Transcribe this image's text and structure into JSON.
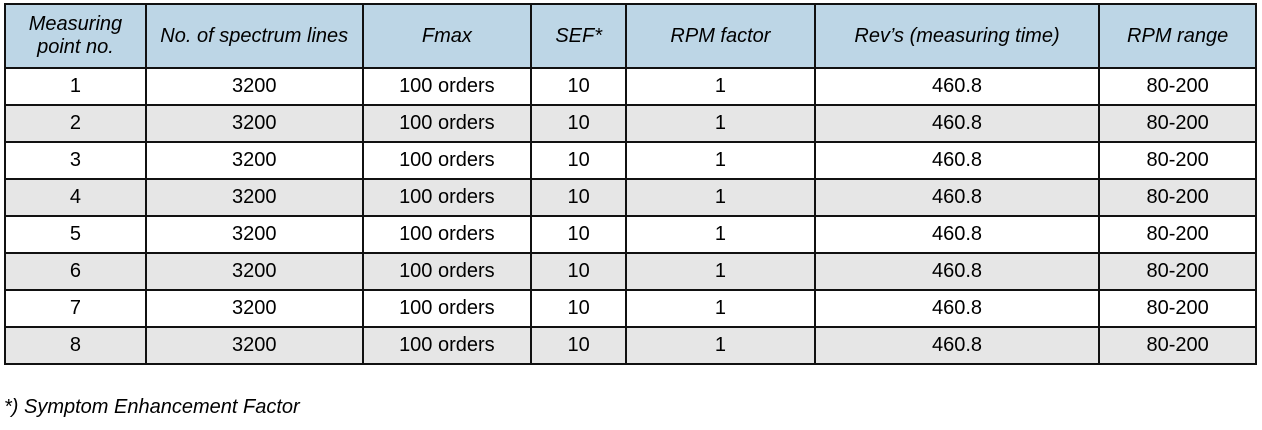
{
  "table": {
    "headers": [
      "Measuring point no.",
      "No. of spectrum lines",
      "Fmax",
      "SEF*",
      "RPM factor",
      "Rev’s (measuring time)",
      "RPM range"
    ],
    "rows": [
      [
        "1",
        "3200",
        "100 orders",
        "10",
        "1",
        "460.8",
        "80-200"
      ],
      [
        "2",
        "3200",
        "100 orders",
        "10",
        "1",
        "460.8",
        "80-200"
      ],
      [
        "3",
        "3200",
        "100 orders",
        "10",
        "1",
        "460.8",
        "80-200"
      ],
      [
        "4",
        "3200",
        "100 orders",
        "10",
        "1",
        "460.8",
        "80-200"
      ],
      [
        "5",
        "3200",
        "100 orders",
        "10",
        "1",
        "460.8",
        "80-200"
      ],
      [
        "6",
        "3200",
        "100 orders",
        "10",
        "1",
        "460.8",
        "80-200"
      ],
      [
        "7",
        "3200",
        "100 orders",
        "10",
        "1",
        "460.8",
        "80-200"
      ],
      [
        "8",
        "3200",
        "100 orders",
        "10",
        "1",
        "460.8",
        "80-200"
      ]
    ]
  },
  "footnote": "*) Symptom Enhancement Factor",
  "colors": {
    "header_bg": "#bdd6e6",
    "alt_row_bg": "#e6e6e6"
  }
}
